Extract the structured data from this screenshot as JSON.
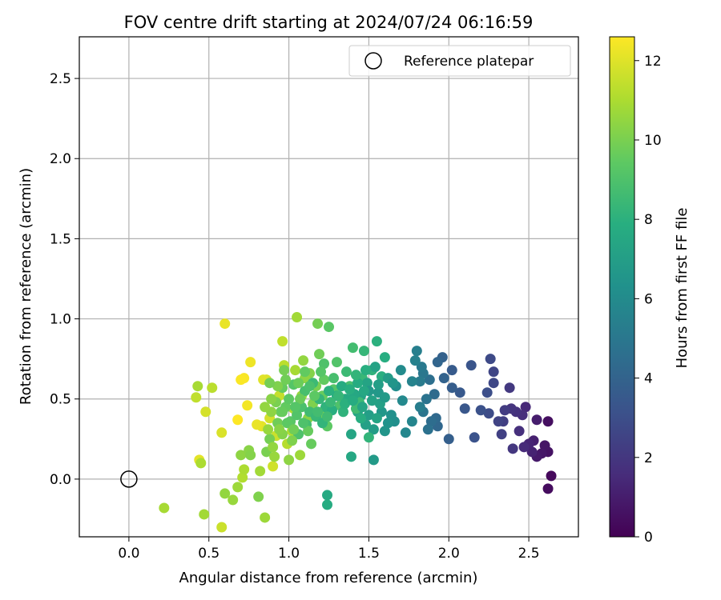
{
  "chart_data": {
    "type": "scatter",
    "title": "FOV centre drift starting at 2024/07/24 06:16:59",
    "xlabel": "Angular distance from reference (arcmin)",
    "ylabel": "Rotation from reference (arcmin)",
    "xlim": [
      -0.31,
      2.81
    ],
    "ylim": [
      -0.36,
      2.76
    ],
    "xticks": [
      0.0,
      0.5,
      1.0,
      1.5,
      2.0,
      2.5
    ],
    "yticks": [
      0.0,
      0.5,
      1.0,
      1.5,
      2.0,
      2.5
    ],
    "xtick_labels": [
      "0.0",
      "0.5",
      "1.0",
      "1.5",
      "2.0",
      "2.5"
    ],
    "ytick_labels": [
      "0.0",
      "0.5",
      "1.0",
      "1.5",
      "2.0",
      "2.5"
    ],
    "grid": true,
    "colormap": "viridis",
    "colorbar": {
      "label": "Hours from first FF file",
      "range": [
        0,
        12.6
      ],
      "ticks": [
        0,
        2,
        4,
        6,
        8,
        10,
        12
      ],
      "tick_labels": [
        "0",
        "2",
        "4",
        "6",
        "8",
        "10",
        "12"
      ]
    },
    "legend": {
      "location": "top-right",
      "entries": [
        "Reference platepar"
      ]
    },
    "reference_point": {
      "x": 0.0,
      "y": 0.0,
      "marker": "open-circle"
    },
    "points": [
      {
        "x": 2.64,
        "y": 0.02,
        "c": 0.3
      },
      {
        "x": 2.62,
        "y": -0.06,
        "c": 0.4
      },
      {
        "x": 2.62,
        "y": 0.36,
        "c": 0.5
      },
      {
        "x": 2.62,
        "y": 0.17,
        "c": 0.6
      },
      {
        "x": 2.6,
        "y": 0.21,
        "c": 0.7
      },
      {
        "x": 2.58,
        "y": 0.16,
        "c": 0.8
      },
      {
        "x": 2.55,
        "y": 0.14,
        "c": 0.9
      },
      {
        "x": 2.55,
        "y": 0.37,
        "c": 1.0
      },
      {
        "x": 2.53,
        "y": 0.24,
        "c": 1.1
      },
      {
        "x": 2.52,
        "y": 0.17,
        "c": 1.2
      },
      {
        "x": 2.5,
        "y": 0.22,
        "c": 1.3
      },
      {
        "x": 2.48,
        "y": 0.45,
        "c": 1.4
      },
      {
        "x": 2.47,
        "y": 0.2,
        "c": 1.5
      },
      {
        "x": 2.46,
        "y": 0.4,
        "c": 1.6
      },
      {
        "x": 2.44,
        "y": 0.3,
        "c": 1.7
      },
      {
        "x": 2.42,
        "y": 0.42,
        "c": 1.8
      },
      {
        "x": 2.39,
        "y": 0.44,
        "c": 1.9
      },
      {
        "x": 2.4,
        "y": 0.19,
        "c": 2.0
      },
      {
        "x": 2.38,
        "y": 0.57,
        "c": 2.1
      },
      {
        "x": 2.35,
        "y": 0.43,
        "c": 2.2
      },
      {
        "x": 2.34,
        "y": 0.36,
        "c": 2.3
      },
      {
        "x": 2.33,
        "y": 0.28,
        "c": 2.4
      },
      {
        "x": 2.31,
        "y": 0.36,
        "c": 2.5
      },
      {
        "x": 2.28,
        "y": 0.67,
        "c": 2.6
      },
      {
        "x": 2.28,
        "y": 0.6,
        "c": 2.7
      },
      {
        "x": 2.26,
        "y": 0.75,
        "c": 2.8
      },
      {
        "x": 2.25,
        "y": 0.41,
        "c": 2.9
      },
      {
        "x": 2.24,
        "y": 0.54,
        "c": 3.0
      },
      {
        "x": 2.2,
        "y": 0.43,
        "c": 3.1
      },
      {
        "x": 2.16,
        "y": 0.26,
        "c": 3.2
      },
      {
        "x": 2.14,
        "y": 0.71,
        "c": 3.3
      },
      {
        "x": 2.1,
        "y": 0.44,
        "c": 3.4
      },
      {
        "x": 2.07,
        "y": 0.54,
        "c": 3.5
      },
      {
        "x": 2.02,
        "y": 0.68,
        "c": 3.6
      },
      {
        "x": 2.02,
        "y": 0.57,
        "c": 3.7
      },
      {
        "x": 2.0,
        "y": 0.25,
        "c": 3.8
      },
      {
        "x": 1.96,
        "y": 0.76,
        "c": 3.9
      },
      {
        "x": 1.97,
        "y": 0.63,
        "c": 4.0
      },
      {
        "x": 1.93,
        "y": 0.73,
        "c": 4.1
      },
      {
        "x": 1.93,
        "y": 0.33,
        "c": 4.2
      },
      {
        "x": 1.92,
        "y": 0.38,
        "c": 4.3
      },
      {
        "x": 1.91,
        "y": 0.53,
        "c": 4.4
      },
      {
        "x": 1.89,
        "y": 0.36,
        "c": 4.5
      },
      {
        "x": 1.88,
        "y": 0.62,
        "c": 4.6
      },
      {
        "x": 1.87,
        "y": 0.31,
        "c": 4.7
      },
      {
        "x": 1.86,
        "y": 0.5,
        "c": 4.8
      },
      {
        "x": 1.84,
        "y": 0.42,
        "c": 4.9
      },
      {
        "x": 1.84,
        "y": 0.66,
        "c": 5.0
      },
      {
        "x": 1.83,
        "y": 0.7,
        "c": 5.1
      },
      {
        "x": 1.82,
        "y": 0.61,
        "c": 5.2
      },
      {
        "x": 1.82,
        "y": 0.45,
        "c": 5.3
      },
      {
        "x": 1.8,
        "y": 0.8,
        "c": 5.4
      },
      {
        "x": 1.79,
        "y": 0.74,
        "c": 5.5
      },
      {
        "x": 1.77,
        "y": 0.61,
        "c": 5.6
      },
      {
        "x": 1.77,
        "y": 0.36,
        "c": 5.7
      },
      {
        "x": 1.73,
        "y": 0.29,
        "c": 5.8
      },
      {
        "x": 1.71,
        "y": 0.49,
        "c": 5.9
      },
      {
        "x": 1.7,
        "y": 0.68,
        "c": 6.0
      },
      {
        "x": 1.67,
        "y": 0.58,
        "c": 6.1
      },
      {
        "x": 1.66,
        "y": 0.36,
        "c": 6.2
      },
      {
        "x": 1.64,
        "y": 0.4,
        "c": 6.3
      },
      {
        "x": 1.62,
        "y": 0.35,
        "c": 6.4
      },
      {
        "x": 1.6,
        "y": 0.3,
        "c": 6.5
      },
      {
        "x": 1.58,
        "y": 0.42,
        "c": 6.6
      },
      {
        "x": 1.56,
        "y": 0.54,
        "c": 6.7
      },
      {
        "x": 1.53,
        "y": 0.12,
        "c": 6.8
      },
      {
        "x": 1.53,
        "y": 0.31,
        "c": 6.9
      },
      {
        "x": 1.5,
        "y": 0.4,
        "c": 7.0
      },
      {
        "x": 1.48,
        "y": 0.34,
        "c": 7.1
      },
      {
        "x": 1.45,
        "y": 0.52,
        "c": 7.2
      },
      {
        "x": 1.43,
        "y": 0.42,
        "c": 7.3
      },
      {
        "x": 1.39,
        "y": 0.28,
        "c": 7.4
      },
      {
        "x": 1.39,
        "y": 0.14,
        "c": 7.5
      },
      {
        "x": 1.24,
        "y": -0.1,
        "c": 7.6
      },
      {
        "x": 1.24,
        "y": -0.16,
        "c": 7.7
      },
      {
        "x": 1.6,
        "y": 0.76,
        "c": 7.8
      },
      {
        "x": 1.58,
        "y": 0.64,
        "c": 7.9
      },
      {
        "x": 1.55,
        "y": 0.86,
        "c": 8.0
      },
      {
        "x": 1.52,
        "y": 0.68,
        "c": 8.1
      },
      {
        "x": 1.5,
        "y": 0.26,
        "c": 8.2
      },
      {
        "x": 1.47,
        "y": 0.8,
        "c": 8.3
      },
      {
        "x": 1.46,
        "y": 0.63,
        "c": 8.4
      },
      {
        "x": 1.44,
        "y": 0.48,
        "c": 8.5
      },
      {
        "x": 1.42,
        "y": 0.44,
        "c": 8.6
      },
      {
        "x": 1.4,
        "y": 0.82,
        "c": 8.7
      },
      {
        "x": 1.38,
        "y": 0.58,
        "c": 8.8
      },
      {
        "x": 1.35,
        "y": 0.5,
        "c": 8.9
      },
      {
        "x": 1.32,
        "y": 0.46,
        "c": 9.0
      },
      {
        "x": 1.3,
        "y": 0.73,
        "c": 9.1
      },
      {
        "x": 1.28,
        "y": 0.56,
        "c": 9.2
      },
      {
        "x": 1.25,
        "y": 0.95,
        "c": 9.3
      },
      {
        "x": 1.24,
        "y": 0.33,
        "c": 9.4
      },
      {
        "x": 1.22,
        "y": 0.62,
        "c": 9.5
      },
      {
        "x": 1.21,
        "y": 0.52,
        "c": 9.6
      },
      {
        "x": 1.2,
        "y": 0.41,
        "c": 9.7
      },
      {
        "x": 1.19,
        "y": 0.78,
        "c": 9.8
      },
      {
        "x": 1.18,
        "y": 0.97,
        "c": 9.9
      },
      {
        "x": 1.17,
        "y": 0.58,
        "c": 10.0
      },
      {
        "x": 1.15,
        "y": 0.47,
        "c": 10.1
      },
      {
        "x": 1.13,
        "y": 0.66,
        "c": 10.2
      },
      {
        "x": 1.12,
        "y": 0.38,
        "c": 10.3
      },
      {
        "x": 1.1,
        "y": 0.63,
        "c": 10.4
      },
      {
        "x": 1.09,
        "y": 0.74,
        "c": 10.5
      },
      {
        "x": 1.08,
        "y": 0.52,
        "c": 10.6
      },
      {
        "x": 1.07,
        "y": 0.15,
        "c": 10.7
      },
      {
        "x": 1.05,
        "y": 1.01,
        "c": 10.8
      },
      {
        "x": 1.04,
        "y": 0.68,
        "c": 10.9
      },
      {
        "x": 1.03,
        "y": 0.44,
        "c": 11.0
      },
      {
        "x": 1.02,
        "y": 0.3,
        "c": 11.1
      },
      {
        "x": 0.99,
        "y": 0.22,
        "c": 11.2
      },
      {
        "x": 0.97,
        "y": 0.71,
        "c": 11.3
      },
      {
        "x": 0.96,
        "y": 0.86,
        "c": 11.4
      },
      {
        "x": 0.94,
        "y": 0.52,
        "c": 11.5
      },
      {
        "x": 0.92,
        "y": 0.27,
        "c": 11.6
      },
      {
        "x": 0.9,
        "y": 0.08,
        "c": 11.7
      },
      {
        "x": 0.88,
        "y": 0.38,
        "c": 11.8
      },
      {
        "x": 0.86,
        "y": 0.62,
        "c": 11.9
      },
      {
        "x": 0.84,
        "y": 0.62,
        "c": 12.0
      },
      {
        "x": 0.83,
        "y": 0.33,
        "c": 12.1
      },
      {
        "x": 0.8,
        "y": 0.34,
        "c": 12.2
      },
      {
        "x": 0.76,
        "y": 0.73,
        "c": 12.3
      },
      {
        "x": 0.74,
        "y": 0.46,
        "c": 12.4
      },
      {
        "x": 0.72,
        "y": 0.63,
        "c": 12.5
      },
      {
        "x": 0.7,
        "y": 0.62,
        "c": 12.55
      },
      {
        "x": 0.68,
        "y": 0.37,
        "c": 12.6
      },
      {
        "x": 0.6,
        "y": 0.97,
        "c": 12.2
      },
      {
        "x": 0.58,
        "y": 0.29,
        "c": 11.9
      },
      {
        "x": 0.58,
        "y": -0.3,
        "c": 11.6
      },
      {
        "x": 0.52,
        "y": 0.57,
        "c": 11.3
      },
      {
        "x": 0.48,
        "y": 0.42,
        "c": 11.8
      },
      {
        "x": 0.44,
        "y": 0.12,
        "c": 12.1
      },
      {
        "x": 0.45,
        "y": 0.1,
        "c": 11.0
      },
      {
        "x": 0.43,
        "y": 0.58,
        "c": 10.9
      },
      {
        "x": 0.42,
        "y": 0.51,
        "c": 11.4
      },
      {
        "x": 0.47,
        "y": -0.22,
        "c": 10.8
      },
      {
        "x": 0.22,
        "y": -0.18,
        "c": 10.9
      },
      {
        "x": 0.6,
        "y": -0.09,
        "c": 10.5
      },
      {
        "x": 0.65,
        "y": -0.13,
        "c": 10.6
      },
      {
        "x": 0.68,
        "y": -0.05,
        "c": 10.7
      },
      {
        "x": 0.71,
        "y": 0.01,
        "c": 11.1
      },
      {
        "x": 0.72,
        "y": 0.06,
        "c": 11.0
      },
      {
        "x": 0.7,
        "y": 0.15,
        "c": 10.4
      },
      {
        "x": 0.75,
        "y": 0.18,
        "c": 10.3
      },
      {
        "x": 0.76,
        "y": 0.15,
        "c": 10.2
      },
      {
        "x": 0.81,
        "y": -0.11,
        "c": 10.1
      },
      {
        "x": 0.82,
        "y": 0.05,
        "c": 10.8
      },
      {
        "x": 0.85,
        "y": -0.24,
        "c": 10.7
      },
      {
        "x": 0.86,
        "y": 0.17,
        "c": 10.0
      },
      {
        "x": 0.88,
        "y": 0.25,
        "c": 9.9
      },
      {
        "x": 0.9,
        "y": 0.2,
        "c": 10.5
      },
      {
        "x": 0.93,
        "y": 0.35,
        "c": 9.8
      },
      {
        "x": 0.95,
        "y": 0.42,
        "c": 9.7
      },
      {
        "x": 0.96,
        "y": 0.57,
        "c": 9.6
      },
      {
        "x": 0.98,
        "y": 0.45,
        "c": 9.5
      },
      {
        "x": 1.0,
        "y": 0.5,
        "c": 9.4
      },
      {
        "x": 1.01,
        "y": 0.36,
        "c": 9.3
      },
      {
        "x": 1.03,
        "y": 0.59,
        "c": 9.2
      },
      {
        "x": 1.05,
        "y": 0.4,
        "c": 9.1
      },
      {
        "x": 1.06,
        "y": 0.28,
        "c": 9.0
      },
      {
        "x": 1.08,
        "y": 0.45,
        "c": 8.9
      },
      {
        "x": 1.1,
        "y": 0.55,
        "c": 8.8
      },
      {
        "x": 1.11,
        "y": 0.34,
        "c": 8.7
      },
      {
        "x": 1.13,
        "y": 0.42,
        "c": 8.6
      },
      {
        "x": 1.15,
        "y": 0.6,
        "c": 8.5
      },
      {
        "x": 1.17,
        "y": 0.39,
        "c": 8.4
      },
      {
        "x": 1.19,
        "y": 0.5,
        "c": 8.3
      },
      {
        "x": 1.21,
        "y": 0.35,
        "c": 8.2
      },
      {
        "x": 1.23,
        "y": 0.45,
        "c": 8.1
      },
      {
        "x": 1.25,
        "y": 0.55,
        "c": 8.0
      },
      {
        "x": 1.27,
        "y": 0.43,
        "c": 7.9
      },
      {
        "x": 1.3,
        "y": 0.52,
        "c": 7.8
      },
      {
        "x": 1.33,
        "y": 0.58,
        "c": 7.7
      },
      {
        "x": 1.36,
        "y": 0.5,
        "c": 7.6
      },
      {
        "x": 1.41,
        "y": 0.53,
        "c": 7.5
      },
      {
        "x": 1.46,
        "y": 0.45,
        "c": 7.4
      },
      {
        "x": 1.49,
        "y": 0.6,
        "c": 7.3
      },
      {
        "x": 1.54,
        "y": 0.7,
        "c": 7.2
      },
      {
        "x": 1.57,
        "y": 0.47,
        "c": 7.1
      },
      {
        "x": 1.62,
        "y": 0.63,
        "c": 6.9
      },
      {
        "x": 1.5,
        "y": 0.55,
        "c": 6.7
      },
      {
        "x": 0.96,
        "y": 0.28,
        "c": 10.2
      },
      {
        "x": 0.92,
        "y": 0.48,
        "c": 10.0
      },
      {
        "x": 0.98,
        "y": 0.62,
        "c": 9.8
      },
      {
        "x": 1.02,
        "y": 0.24,
        "c": 10.1
      },
      {
        "x": 1.07,
        "y": 0.5,
        "c": 9.7
      },
      {
        "x": 1.12,
        "y": 0.3,
        "c": 9.6
      },
      {
        "x": 1.16,
        "y": 0.52,
        "c": 9.4
      },
      {
        "x": 1.14,
        "y": 0.22,
        "c": 9.6
      },
      {
        "x": 1.04,
        "y": 0.45,
        "c": 9.2
      },
      {
        "x": 0.99,
        "y": 0.35,
        "c": 9.4
      },
      {
        "x": 0.94,
        "y": 0.31,
        "c": 10.3
      },
      {
        "x": 0.89,
        "y": 0.42,
        "c": 10.4
      },
      {
        "x": 0.87,
        "y": 0.31,
        "c": 10.6
      },
      {
        "x": 0.91,
        "y": 0.14,
        "c": 10.6
      },
      {
        "x": 1.0,
        "y": 0.12,
        "c": 10.4
      },
      {
        "x": 1.09,
        "y": 0.35,
        "c": 9.0
      },
      {
        "x": 1.18,
        "y": 0.42,
        "c": 8.7
      },
      {
        "x": 1.26,
        "y": 0.48,
        "c": 8.4
      },
      {
        "x": 1.34,
        "y": 0.42,
        "c": 8.1
      },
      {
        "x": 1.38,
        "y": 0.56,
        "c": 7.9
      },
      {
        "x": 1.43,
        "y": 0.6,
        "c": 7.7
      },
      {
        "x": 1.47,
        "y": 0.55,
        "c": 7.5
      },
      {
        "x": 1.52,
        "y": 0.49,
        "c": 7.2
      },
      {
        "x": 1.56,
        "y": 0.59,
        "c": 7.0
      },
      {
        "x": 1.6,
        "y": 0.51,
        "c": 6.8
      },
      {
        "x": 1.65,
        "y": 0.6,
        "c": 6.5
      },
      {
        "x": 1.45,
        "y": 0.38,
        "c": 7.8
      },
      {
        "x": 1.55,
        "y": 0.38,
        "c": 7.3
      },
      {
        "x": 1.48,
        "y": 0.68,
        "c": 7.9
      },
      {
        "x": 1.42,
        "y": 0.65,
        "c": 8.2
      },
      {
        "x": 1.36,
        "y": 0.67,
        "c": 8.5
      },
      {
        "x": 1.28,
        "y": 0.63,
        "c": 8.8
      },
      {
        "x": 1.22,
        "y": 0.72,
        "c": 9.0
      },
      {
        "x": 1.2,
        "y": 0.67,
        "c": 9.2
      },
      {
        "x": 1.1,
        "y": 0.67,
        "c": 9.5
      },
      {
        "x": 1.06,
        "y": 0.6,
        "c": 9.7
      },
      {
        "x": 0.97,
        "y": 0.68,
        "c": 9.9
      },
      {
        "x": 0.93,
        "y": 0.58,
        "c": 10.1
      },
      {
        "x": 0.89,
        "y": 0.5,
        "c": 10.3
      },
      {
        "x": 0.85,
        "y": 0.45,
        "c": 10.5
      },
      {
        "x": 0.88,
        "y": 0.6,
        "c": 9.9
      },
      {
        "x": 0.96,
        "y": 0.42,
        "c": 9.6
      },
      {
        "x": 1.03,
        "y": 0.31,
        "c": 9.8
      },
      {
        "x": 1.13,
        "y": 0.58,
        "c": 8.9
      },
      {
        "x": 1.24,
        "y": 0.39,
        "c": 8.6
      },
      {
        "x": 1.31,
        "y": 0.52,
        "c": 8.3
      },
      {
        "x": 1.35,
        "y": 0.47,
        "c": 8.0
      },
      {
        "x": 1.4,
        "y": 0.49,
        "c": 7.7
      }
    ]
  }
}
